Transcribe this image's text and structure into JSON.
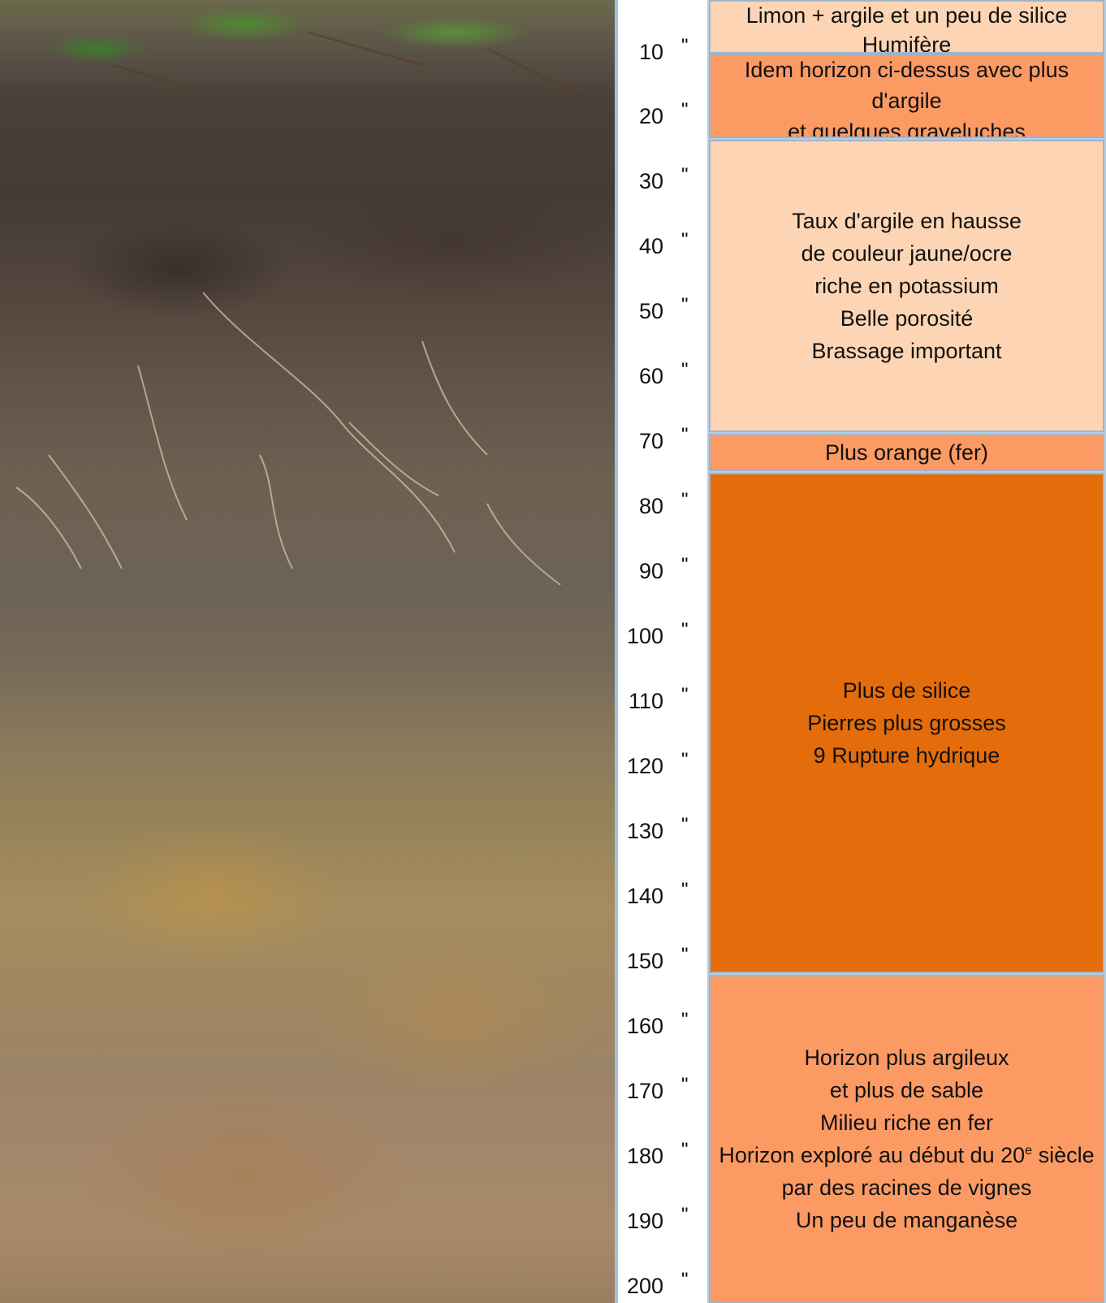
{
  "scale": {
    "unit_mark": "\"",
    "ticks": [
      "10",
      "20",
      "30",
      "40",
      "50",
      "60",
      "70",
      "80",
      "90",
      "100",
      "110",
      "120",
      "130",
      "140",
      "150",
      "160",
      "170",
      "180",
      "190",
      "200"
    ]
  },
  "horizons": [
    {
      "lines": [
        "Limon + argile et un peu de silice",
        "Humifère"
      ],
      "color": "#fdd5b4"
    },
    {
      "lines": [
        "Idem horizon ci-dessus avec plus",
        "d'argile",
        "et quelques graveluches"
      ],
      "color": "#fc9a64"
    },
    {
      "lines": [
        "Taux d'argile en hausse",
        "de couleur jaune/ocre",
        "riche en potassium",
        "Belle porosité",
        "Brassage important"
      ],
      "color": "#fdd5b4"
    },
    {
      "lines": [
        "Plus orange (fer)"
      ],
      "color": "#fc9a64"
    },
    {
      "lines": [
        "Plus de silice",
        "Pierres plus grosses",
        "9 Rupture hydrique"
      ],
      "color": "#e46c0a"
    },
    {
      "lines": [
        "Horizon plus argileux",
        "et plus de sable",
        "Milieu riche en fer",
        "Horizon exploré au début du 20",
        "e",
        " siècle",
        "par des racines de vignes",
        "Un peu de manganèse"
      ],
      "color": "#fc9a64"
    }
  ]
}
